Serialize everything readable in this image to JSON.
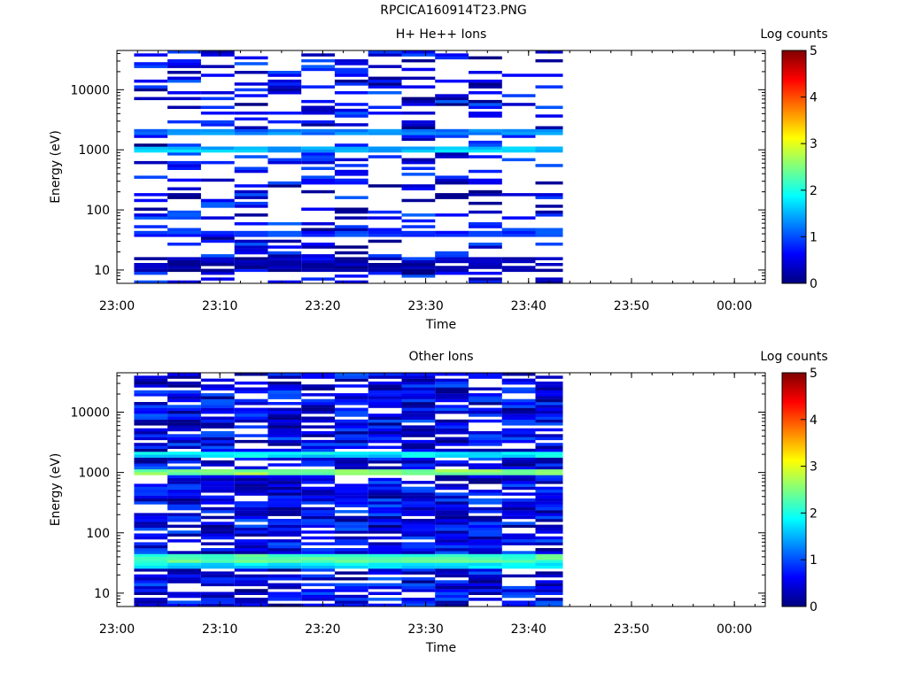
{
  "title": "RPCICA160914T23.PNG",
  "chart_data": [
    {
      "type": "heatmap",
      "title": "H+ He++ Ions",
      "xlabel": "Time",
      "ylabel": "Energy (eV)",
      "x_ticks": [
        "23:00",
        "23:10",
        "23:20",
        "23:30",
        "23:40",
        "23:50",
        "00:00"
      ],
      "x_range": [
        "23:00",
        "00:03"
      ],
      "y_scale": "log",
      "y_ticks": [
        "10",
        "100",
        "1000",
        "10000"
      ],
      "y_range": [
        6,
        45000
      ],
      "colorbar": {
        "label": "Log counts",
        "range": [
          0,
          5
        ],
        "ticks": [
          "0",
          "1",
          "2",
          "3",
          "4",
          "5"
        ]
      },
      "time_bins": [
        "23:01:40",
        "23:04:55",
        "23:08:10",
        "23:11:25",
        "23:14:40",
        "23:17:55",
        "23:21:10",
        "23:24:25",
        "23:27:40",
        "23:30:55",
        "23:34:10",
        "23:37:25",
        "23:40:40"
      ],
      "data_end": "23:43:20",
      "energy_rows": 80,
      "seed": 7,
      "fill_probability": 0.3,
      "bands": [
        {
          "energy": 1000,
          "level": 1.8,
          "width": 0.04
        },
        {
          "energy": 2000,
          "level": 1.5,
          "width": 0.03
        },
        {
          "energy": 38,
          "level": 1.1,
          "width": 0.05
        },
        {
          "energy": 13,
          "level": 0.4,
          "width": 0.12
        }
      ]
    },
    {
      "type": "heatmap",
      "title": "Other Ions",
      "xlabel": "Time",
      "ylabel": "Energy (eV)",
      "x_ticks": [
        "23:00",
        "23:10",
        "23:20",
        "23:30",
        "23:40",
        "23:50",
        "00:00"
      ],
      "x_range": [
        "23:00",
        "00:03"
      ],
      "y_scale": "log",
      "y_ticks": [
        "10",
        "100",
        "1000",
        "10000"
      ],
      "y_range": [
        6,
        45000
      ],
      "colorbar": {
        "label": "Log counts",
        "range": [
          0,
          5
        ],
        "ticks": [
          "0",
          "1",
          "2",
          "3",
          "4",
          "5"
        ]
      },
      "time_bins": [
        "23:01:40",
        "23:04:55",
        "23:08:10",
        "23:11:25",
        "23:14:40",
        "23:17:55",
        "23:21:10",
        "23:24:25",
        "23:27:40",
        "23:30:55",
        "23:34:10",
        "23:37:25",
        "23:40:40"
      ],
      "data_end": "23:43:20",
      "energy_rows": 80,
      "seed": 13,
      "fill_probability": 0.78,
      "bands": [
        {
          "energy": 1000,
          "level": 2.8,
          "width": 0.05
        },
        {
          "energy": 2000,
          "level": 2.0,
          "width": 0.04
        },
        {
          "energy": 38,
          "level": 2.5,
          "width": 0.06
        },
        {
          "energy": 28,
          "level": 2.0,
          "width": 0.04
        }
      ]
    }
  ]
}
